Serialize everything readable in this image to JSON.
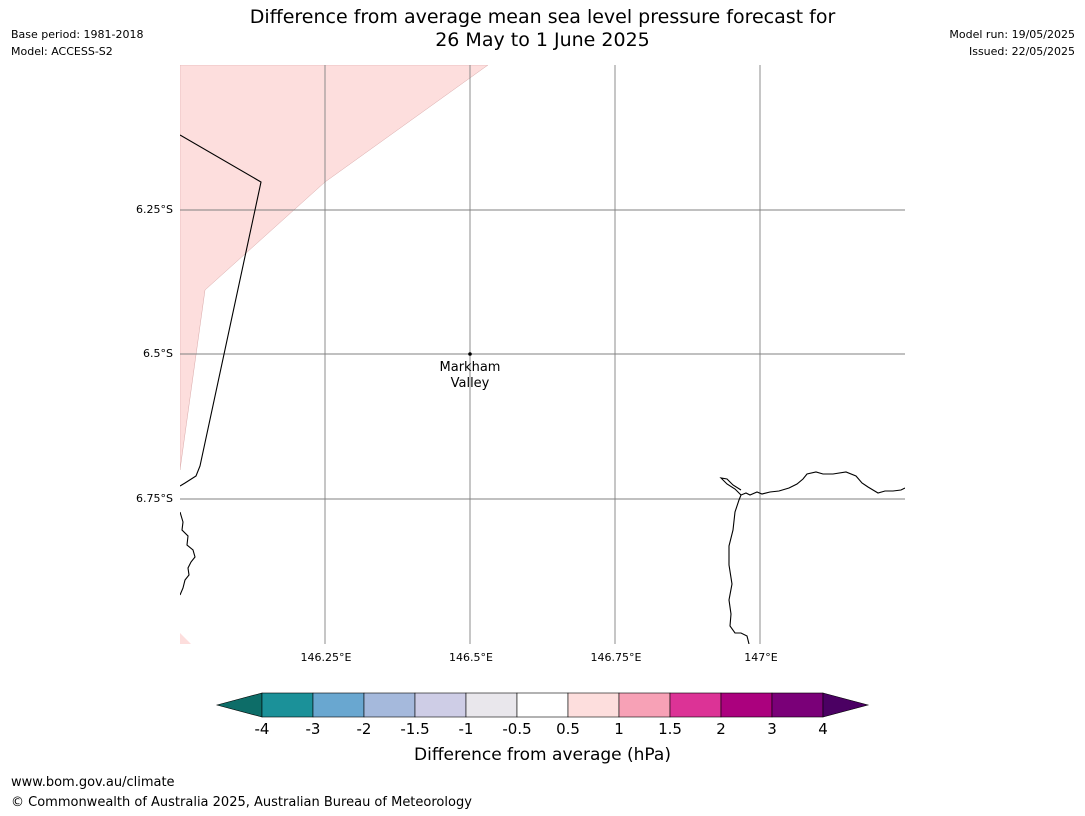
{
  "header": {
    "title_line1": "Difference from average mean sea level pressure forecast for",
    "title_line2": "26 May to 1 June 2025",
    "base_period": "Base period: 1981-2018",
    "model": "Model: ACCESS-S2",
    "model_run": "Model run: 19/05/2025",
    "issued": "Issued: 22/05/2025"
  },
  "map": {
    "lat_labels": [
      "6.25°S",
      "6.5°S",
      "6.75°S"
    ],
    "lon_labels": [
      "146.25°E",
      "146.5°E",
      "146.75°E",
      "147°E"
    ],
    "place_name_line1": "Markham",
    "place_name_line2": "Valley",
    "anomaly_fill_color": "#fddedd",
    "coastline_color": "#000000",
    "gridline_color": "#808080"
  },
  "colorbar": {
    "label": "Difference from average (hPa)",
    "ticks": [
      "-4",
      "-3",
      "-2",
      "-1.5",
      "-1",
      "-0.5",
      "0.5",
      "1",
      "1.5",
      "2",
      "3",
      "4"
    ],
    "colors": [
      "#0d6d68",
      "#1b9199",
      "#69a7d0",
      "#a5b9dc",
      "#cecde6",
      "#e9e7ec",
      "#ffffff",
      "#fddedd",
      "#f7a1b6",
      "#dc3396",
      "#ab017e",
      "#7a0078",
      "#4b0063"
    ]
  },
  "footer": {
    "url": "www.bom.gov.au/climate",
    "copyright": "© Commonwealth of Australia 2025, Australian Bureau of Meteorology"
  }
}
